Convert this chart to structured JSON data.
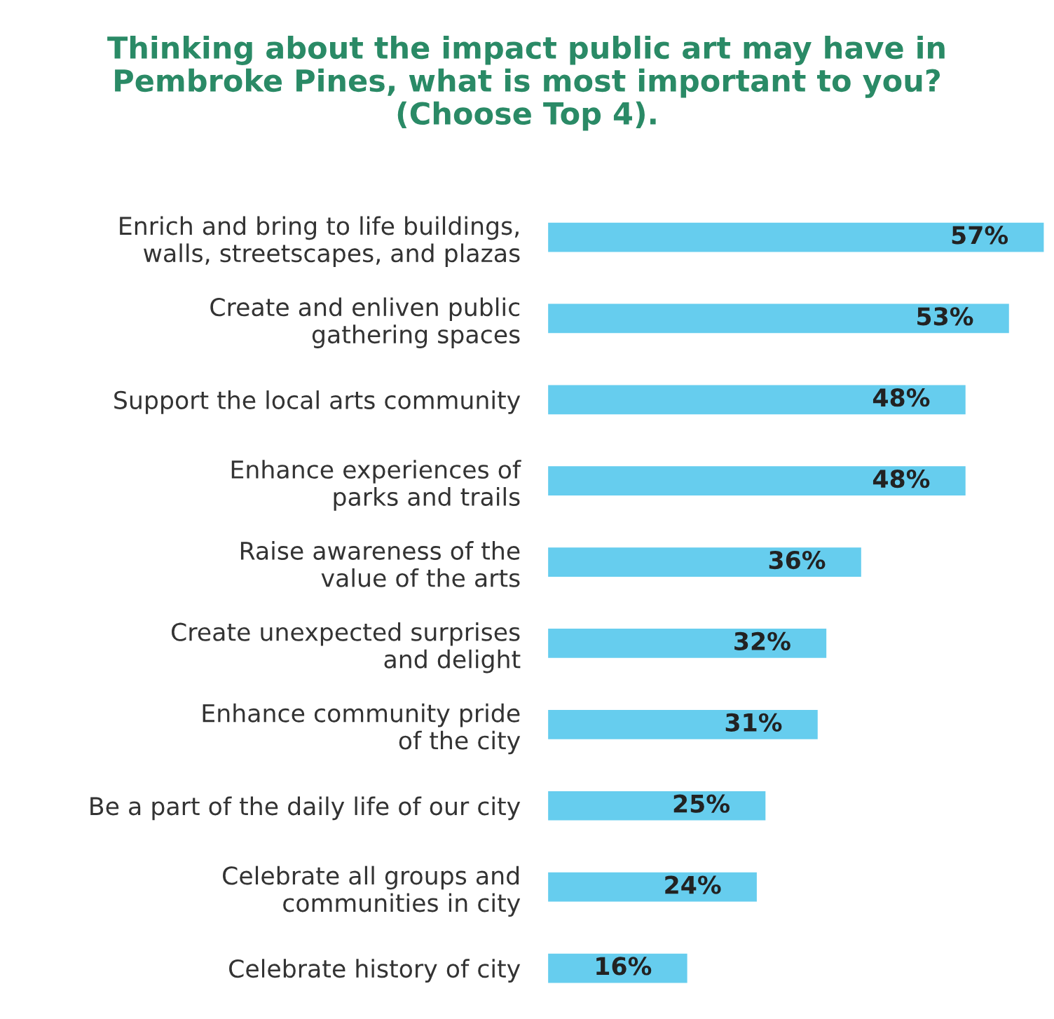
{
  "chart_data": {
    "type": "bar",
    "orientation": "horizontal",
    "title": "Thinking about the impact public art may have in\nPembroke Pines, what is most important to you?\n(Choose Top 4).",
    "categories": [
      "Enrich and bring to life buildings,\nwalls, streetscapes, and plazas",
      "Create and enliven public\ngathering spaces",
      "Support the local arts community",
      "Enhance experiences of\nparks and trails",
      "Raise awareness of the\nvalue of the arts",
      "Create unexpected surprises\nand delight",
      "Enhance community pride\nof the city",
      "Be a part of the daily life of our city",
      "Celebrate all groups and\ncommunities in city",
      "Celebrate history of city"
    ],
    "values": [
      57,
      53,
      48,
      48,
      36,
      32,
      31,
      25,
      24,
      16
    ],
    "value_labels": [
      "57%",
      "53%",
      "48%",
      "48%",
      "36%",
      "32%",
      "31%",
      "25%",
      "24%",
      "16%"
    ],
    "color": "#66cdee",
    "grid": false,
    "legend": false
  }
}
